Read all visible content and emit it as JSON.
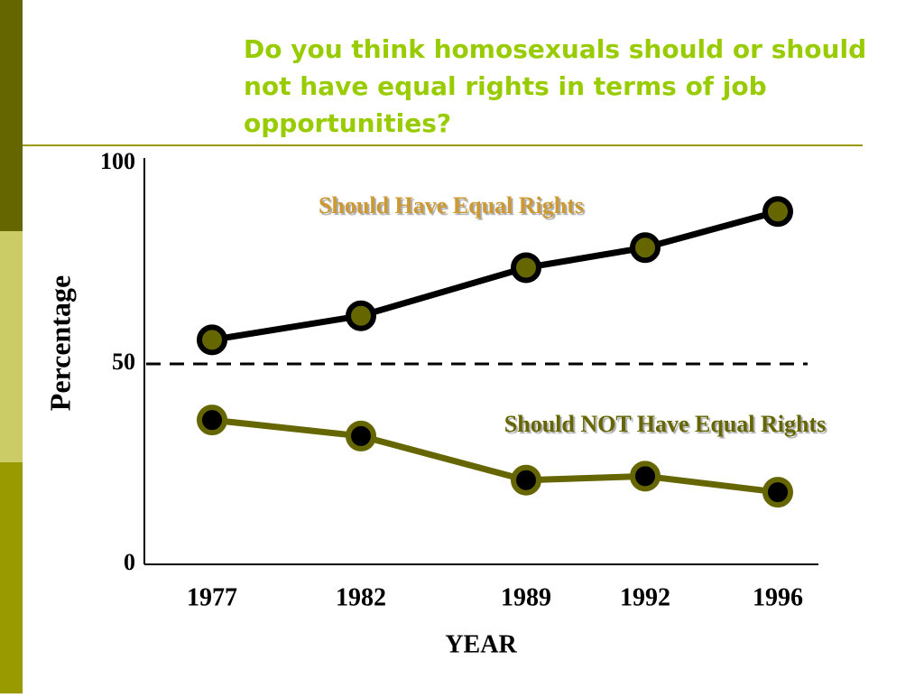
{
  "chart_data": {
    "type": "line",
    "title": "Do you think homosexuals should or should not have equal rights in terms of job opportunities?",
    "x_label": "YEAR",
    "y_label": "Percentage",
    "categories": [
      "1977",
      "1982",
      "1989",
      "1992",
      "1996"
    ],
    "series": [
      {
        "name": "Should Have Equal Rights",
        "color": "#000000",
        "marker_color": "#666600",
        "label_color": "#cc9933",
        "values": [
          56,
          62,
          74,
          79,
          88
        ]
      },
      {
        "name": "Should NOT Have Equal Rights",
        "color": "#666600",
        "marker_color": "#000000",
        "label_color": "#666600",
        "values": [
          36,
          32,
          21,
          22,
          18
        ]
      }
    ],
    "ylim": [
      0,
      100
    ],
    "yticks": [
      0,
      50,
      100
    ],
    "reference_line": 50
  }
}
